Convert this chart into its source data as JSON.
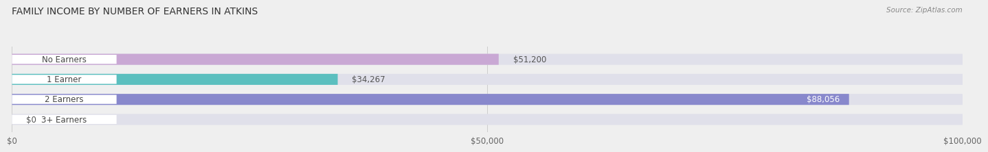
{
  "title": "FAMILY INCOME BY NUMBER OF EARNERS IN ATKINS",
  "source": "Source: ZipAtlas.com",
  "categories": [
    "No Earners",
    "1 Earner",
    "2 Earners",
    "3+ Earners"
  ],
  "values": [
    51200,
    34267,
    88056,
    0
  ],
  "bar_colors": [
    "#c9a8d4",
    "#5bbfbf",
    "#8888cc",
    "#f4a8c0"
  ],
  "value_labels": [
    "$51,200",
    "$34,267",
    "$88,056",
    "$0"
  ],
  "xlim": [
    0,
    100000
  ],
  "xticks": [
    0,
    50000,
    100000
  ],
  "xtick_labels": [
    "$0",
    "$50,000",
    "$100,000"
  ],
  "background_color": "#efefef",
  "bar_background": "#e0e0ea",
  "title_fontsize": 10,
  "bar_height": 0.55,
  "figsize": [
    14.06,
    2.33
  ]
}
